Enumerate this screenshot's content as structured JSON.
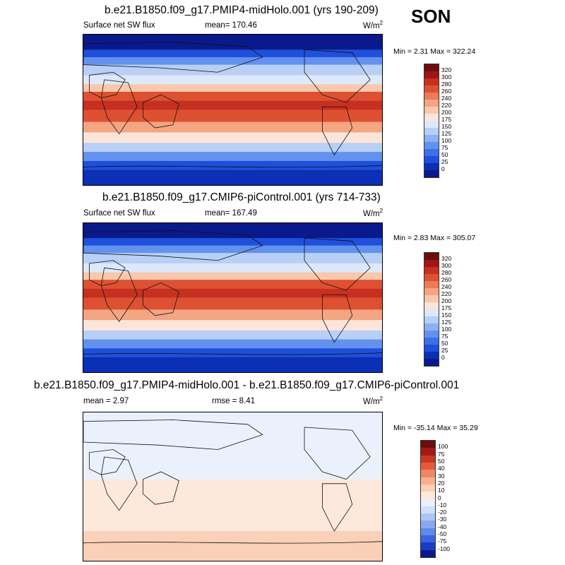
{
  "season": "SON",
  "panels": [
    {
      "title": "b.e21.B1850.f09_g17.PMIP4-midHolo.001 (yrs 190-209)",
      "left_label": "Surface net SW flux",
      "center_label": "mean= 170.46",
      "units": "W/m",
      "units_sup": "2",
      "minmax": "Min =   2.31 Max = 322.24",
      "field": "absolute"
    },
    {
      "title": "b.e21.B1850.f09_g17.CMIP6-piControl.001 (yrs 714-733)",
      "left_label": "Surface net SW flux",
      "center_label": "mean= 167.49",
      "units": "W/m",
      "units_sup": "2",
      "minmax": "Min =   2.83 Max = 305.07",
      "field": "absolute"
    },
    {
      "title": "b.e21.B1850.f09_g17.PMIP4-midHolo.001 - b.e21.B1850.f09_g17.CMIP6-piControl.001",
      "left_label": "mean =   2.97",
      "center_label": "rmse =   8.41",
      "units": "W/m",
      "units_sup": "2",
      "minmax": "Min = -35.14 Max =  35.29",
      "field": "difference"
    }
  ],
  "chart_data": [
    {
      "type": "heatmap",
      "title": "b.e21.B1850.f09_g17.PMIP4-midHolo.001 (yrs 190-209)",
      "variable": "Surface net SW flux",
      "units": "W/m2",
      "season": "SON",
      "mean": 170.46,
      "min": 2.31,
      "max": 322.24,
      "colorbar_levels": [
        0,
        25,
        50,
        75,
        100,
        125,
        150,
        175,
        200,
        220,
        240,
        260,
        280,
        300,
        320
      ]
    },
    {
      "type": "heatmap",
      "title": "b.e21.B1850.f09_g17.CMIP6-piControl.001 (yrs 714-733)",
      "variable": "Surface net SW flux",
      "units": "W/m2",
      "season": "SON",
      "mean": 167.49,
      "min": 2.83,
      "max": 305.07,
      "colorbar_levels": [
        0,
        25,
        50,
        75,
        100,
        125,
        150,
        175,
        200,
        220,
        240,
        260,
        280,
        300,
        320
      ]
    },
    {
      "type": "heatmap",
      "title": "b.e21.B1850.f09_g17.PMIP4-midHolo.001 - b.e21.B1850.f09_g17.CMIP6-piControl.001",
      "units": "W/m2",
      "season": "SON",
      "mean": 2.97,
      "rmse": 8.41,
      "min": -35.14,
      "max": 35.29,
      "colorbar_levels": [
        -100,
        -75,
        -50,
        -40,
        -30,
        -20,
        -10,
        0,
        10,
        20,
        30,
        40,
        50,
        75,
        100
      ]
    }
  ],
  "colors": {
    "absolute_scale": [
      "#0a1a8c",
      "#0b2fb5",
      "#1f4fdb",
      "#3d6fe6",
      "#6392ee",
      "#8db0f2",
      "#b8cff6",
      "#dde8fb",
      "#fbe5d8",
      "#f8c8ad",
      "#f4a582",
      "#ec7b57",
      "#dd5132",
      "#c53020",
      "#9e1618",
      "#6b0d0e"
    ],
    "difference_scale": [
      "#0a1a8c",
      "#1a3cc4",
      "#3a64e0",
      "#6189ec",
      "#88a9f1",
      "#adc5f5",
      "#d0e0fa",
      "#eaf1fd",
      "#fde8dc",
      "#fbd0b8",
      "#f7b090",
      "#ef8762",
      "#e05d3c",
      "#c83824",
      "#a11a18",
      "#6b0d0e"
    ]
  }
}
